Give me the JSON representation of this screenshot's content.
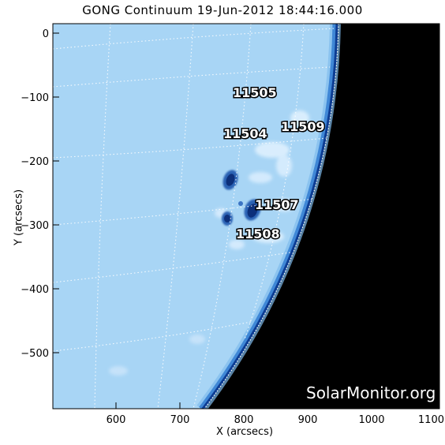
{
  "title": "GONG Continuum 19-Jun-2012 18:44:16.000",
  "x_axis": {
    "label": "X (arcsecs)",
    "ticks": [
      "600",
      "700",
      "800",
      "900",
      "1000",
      "1100"
    ]
  },
  "y_axis": {
    "label": "Y (arcsecs)",
    "ticks": [
      "0",
      "−100",
      "−200",
      "−300",
      "−400",
      "−500"
    ]
  },
  "active_regions": [
    "11505",
    "11504",
    "11509",
    "11507",
    "11508"
  ],
  "watermark": "SolarMonitor.org",
  "colors": {
    "disk": "#a9d6f5",
    "disk_edge": "#1c5fb8",
    "space": "#000000",
    "grid": "#ffffff"
  }
}
